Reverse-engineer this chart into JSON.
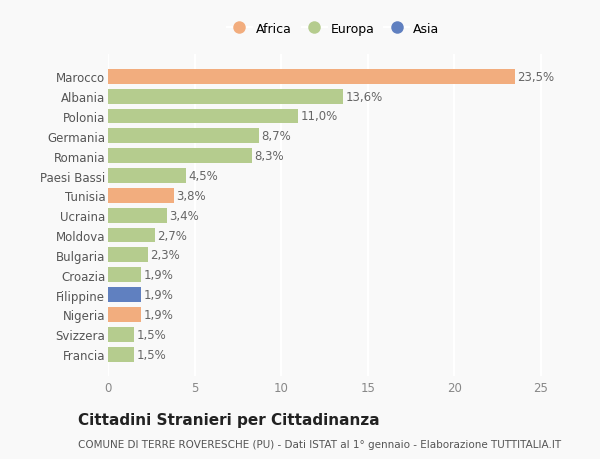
{
  "categories": [
    "Francia",
    "Svizzera",
    "Nigeria",
    "Filippine",
    "Croazia",
    "Bulgaria",
    "Moldova",
    "Ucraina",
    "Tunisia",
    "Paesi Bassi",
    "Romania",
    "Germania",
    "Polonia",
    "Albania",
    "Marocco"
  ],
  "values": [
    1.5,
    1.5,
    1.9,
    1.9,
    1.9,
    2.3,
    2.7,
    3.4,
    3.8,
    4.5,
    8.3,
    8.7,
    11.0,
    13.6,
    23.5
  ],
  "labels": [
    "1,5%",
    "1,5%",
    "1,9%",
    "1,9%",
    "1,9%",
    "2,3%",
    "2,7%",
    "3,4%",
    "3,8%",
    "4,5%",
    "8,3%",
    "8,7%",
    "11,0%",
    "13,6%",
    "23,5%"
  ],
  "continents": [
    "Europa",
    "Europa",
    "Africa",
    "Asia",
    "Europa",
    "Europa",
    "Europa",
    "Europa",
    "Africa",
    "Europa",
    "Europa",
    "Europa",
    "Europa",
    "Europa",
    "Africa"
  ],
  "continent_colors": {
    "Africa": "#f2ad7e",
    "Europa": "#b5cc8e",
    "Asia": "#6080c0"
  },
  "legend_order": [
    "Africa",
    "Europa",
    "Asia"
  ],
  "xlim": [
    0,
    26
  ],
  "xticks": [
    0,
    5,
    10,
    15,
    20,
    25
  ],
  "title": "Cittadini Stranieri per Cittadinanza",
  "subtitle": "COMUNE DI TERRE ROVERESCHE (PU) - Dati ISTAT al 1° gennaio - Elaborazione TUTTITALIA.IT",
  "bg_color": "#f9f9f9",
  "bar_height": 0.75,
  "label_fontsize": 8.5,
  "title_fontsize": 11,
  "subtitle_fontsize": 7.5,
  "ytick_fontsize": 8.5,
  "xtick_fontsize": 8.5
}
